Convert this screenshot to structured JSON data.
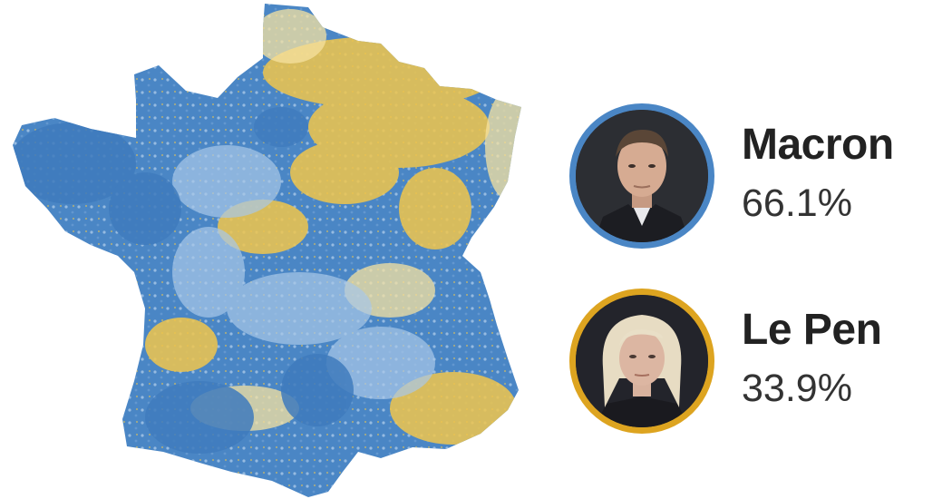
{
  "map": {
    "region": "france-communes",
    "colors": {
      "macron_dark": "#4a86c5",
      "macron_light": "#a9c8e8",
      "lepen_dark": "#f0c64c",
      "lepen_light": "#f5e2a0"
    }
  },
  "candidates": [
    {
      "name": "Macron",
      "percent": "66.1%",
      "ring_color": "#4a86c5",
      "photo_icon": "macron-portrait"
    },
    {
      "name": "Le Pen",
      "percent": "33.9%",
      "ring_color": "#dda420",
      "photo_icon": "le-pen-portrait"
    }
  ]
}
